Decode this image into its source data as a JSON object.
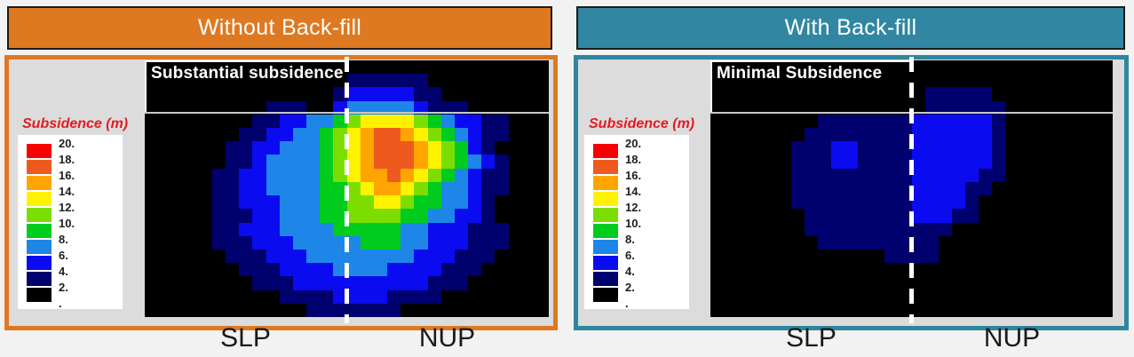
{
  "page": {
    "background": "#F2F2F2"
  },
  "palette": {
    "k": "#000000",
    "n": "#00006E",
    "b": "#0B0BF2",
    "c": "#1E86E8",
    "g": "#00CC1E",
    "l": "#7CDE00",
    "y": "#FFF200",
    "o": "#FFA400",
    "r": "#EE5A1E",
    "R": "#F60000"
  },
  "legend": {
    "title": "Subsidence (m)",
    "title_color": "#E31B23",
    "swatch_keys": [
      "R",
      "r",
      "o",
      "y",
      "l",
      "g",
      "c",
      "b",
      "n",
      "k"
    ],
    "tick_labels": [
      "20.",
      "18.",
      "16.",
      "14.",
      "12.",
      "10.",
      "8.",
      "6.",
      "4.",
      "2.",
      "."
    ]
  },
  "panels": [
    {
      "header_label": "Without Back-fill",
      "header_bg": "#DE7921",
      "frame_color": "#DE7921",
      "annotation": "Substantial subsidence",
      "axis_labels": [
        "SLP",
        "NUP"
      ]
    },
    {
      "header_label": "With Back-fill",
      "header_bg": "#3187A2",
      "frame_color": "#2E86A0",
      "annotation": "Minimal Subsidence",
      "axis_labels": [
        "SLP",
        "NUP"
      ]
    }
  ],
  "chart_data": [
    {
      "type": "heatmap",
      "title": "Without Back-fill",
      "annotation": "Substantial subsidence",
      "x_axis_labels": [
        "SLP",
        "NUP"
      ],
      "legend_title": "Subsidence (m)",
      "legend_ticks": [
        20,
        18,
        16,
        14,
        12,
        10,
        8,
        6,
        4,
        2
      ],
      "cell_value_ranges_m": {
        "k": "0-2",
        "n": "2-4",
        "b": "4-6",
        "c": "6-8",
        "g": "8-10",
        "l": "10-12",
        "y": "12-14",
        "o": "14-16",
        "r": "16-18",
        "R": "18-20"
      },
      "grid_cols": 30,
      "grid_rows_count": 19,
      "overlays": {
        "horizontal_surface_line": true,
        "vertical_dashed_divider_between_halves": true
      },
      "grid_rows": [
        "kkkkkkkkkkkkkkkkkkkkkkkkkkkkkk",
        "kkkkkkkkkkkkkkknnnnnnkkkkkkkkk",
        "kkkkkkkkkkkkkknbbbbbnnkkkkkkkk",
        "kkkkkkkkknnnkkbcccccbnnnkkkkkk",
        "kkkkkkkknnbbccglyyyylgcbbnnkkk",
        "kkkkkkknnbbccglyorroylgcbnnkkk",
        "kkkkkknnbbcccglyorrroylgbnkkkk",
        "kkkkkknnbccccglyorrroylgcbnkkk",
        "kkkkknnbbccccglyooroylgcbnnkkk",
        "kkkkknnbbccccgglyooylgccbnnkkk",
        "kkkkknnbbbcccggllyylggccbnkkkk",
        "kkkkknnnbbcccggllllggccbbnkkkk",
        "kkkkknnbbbccccgggggccbbbnnnkkk",
        "kkkkknnnbbbcccccgggccbbbnnnkkk",
        "kkkkkknnnbbbccccccccbbbnnnkkkk",
        "kkkkkkknnnbbbbccccbbbbnnnkkkkk",
        "kkkkkkkknnnbbbbbbbbbbnnnkkkkkk",
        "kkkkkkkkkknnnnbbbbnnnnkkkkkkkk",
        "kkkkkkkkkkkknnnnnnnkkkkkkkkkkk"
      ]
    },
    {
      "type": "heatmap",
      "title": "With Back-fill",
      "annotation": "Minimal Subsidence",
      "x_axis_labels": [
        "SLP",
        "NUP"
      ],
      "legend_title": "Subsidence (m)",
      "legend_ticks": [
        20,
        18,
        16,
        14,
        12,
        10,
        8,
        6,
        4,
        2
      ],
      "cell_value_ranges_m": {
        "k": "0-2",
        "n": "2-4",
        "b": "4-6",
        "c": "6-8",
        "g": "8-10",
        "l": "10-12",
        "y": "12-14",
        "o": "14-16",
        "r": "16-18",
        "R": "18-20"
      },
      "grid_cols": 30,
      "grid_rows_count": 19,
      "overlays": {
        "horizontal_surface_line": true,
        "vertical_dashed_divider_between_halves": true
      },
      "grid_rows": [
        "kkkkkkkkkkkkkkkkkkkkkkkkkkkkkk",
        "kkkkkkkkkkkkkkkkkkkkkkkkkkkkkk",
        "kkkkkkkkkkkkkkkknnnnnkkkkkkkkk",
        "kkkkkkkkkkkkkkkknnnnnnkkkkkkkk",
        "kkkkkkkknnnnnnnbbbbbbnkkkkkkkk",
        "kkkkkkknnnnnnnnbbbbbbnkkkkkkkk",
        "kkkkkknnnbbnnnnbbbbbbnkkkkkkkk",
        "kkkkkknnnbbnnnnbbbbbbnkkkkkkkk",
        "kkkkkknnnnnnnnnbbbbbnnkkkkkkkk",
        "kkkkkknnnnnnnnnbbbbnnkkkkkkkkk",
        "kkkkkknnnnnnnnnbbbbnkkkkkkkkkk",
        "kkkkkkknnnnnnnnbbbnnkkkkkkkkkk",
        "kkkkkkknnnnnnnnnnnkkkkkkkkkkkk",
        "kkkkkkkknnnnnnnnnkkkkkkkkkkkkk",
        "kkkkkkkkkkkkknnnnkkkkkkkkkkkkk",
        "kkkkkkkkkkkkkkkkkkkkkkkkkkkkkk",
        "kkkkkkkkkkkkkkkkkkkkkkkkkkkkkk",
        "kkkkkkkkkkkkkkkkkkkkkkkkkkkkkk",
        "kkkkkkkkkkkkkkkkkkkkkkkkkkkkkk"
      ]
    }
  ]
}
